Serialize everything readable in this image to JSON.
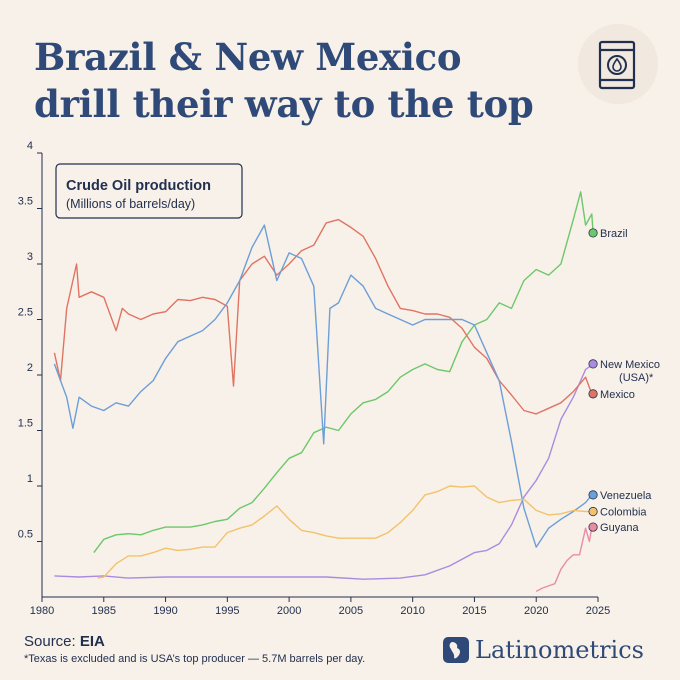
{
  "title": "Brazil & New Mexico drill their way to the top",
  "legend_box": {
    "title": "Crude Oil production",
    "subtitle": "(Millions of barrels/day)"
  },
  "source": {
    "label": "Source:",
    "name": "EIA"
  },
  "footnote": "*Texas is excluded and is USA’s top producer —  5.7M barrels per day.",
  "brand": {
    "name": "Latinometrics"
  },
  "colors": {
    "background": "#f8f1e9",
    "axis_text": "#22304f",
    "title": "#2f4a78"
  },
  "chart_data": {
    "type": "line",
    "title": "Crude Oil production",
    "subtitle": "(Millions of barrels/day)",
    "xlabel": "",
    "ylabel": "",
    "xlim": [
      1980,
      2025
    ],
    "ylim": [
      0,
      4
    ],
    "x_ticks": [
      1980,
      1985,
      1990,
      1995,
      2000,
      2005,
      2010,
      2015,
      2020,
      2025
    ],
    "y_ticks": [
      0.5,
      1,
      1.5,
      2,
      2.5,
      3,
      3.5,
      4
    ],
    "grid": false,
    "series": [
      {
        "name": "Brazil",
        "color": "#6cc86a",
        "icon": "brazil-flag-icon",
        "points": [
          [
            1984.2,
            0.4
          ],
          [
            1985,
            0.52
          ],
          [
            1986,
            0.56
          ],
          [
            1987,
            0.57
          ],
          [
            1988,
            0.56
          ],
          [
            1989,
            0.6
          ],
          [
            1990,
            0.63
          ],
          [
            1991,
            0.63
          ],
          [
            1992,
            0.63
          ],
          [
            1993,
            0.65
          ],
          [
            1994,
            0.68
          ],
          [
            1995,
            0.7
          ],
          [
            1996,
            0.8
          ],
          [
            1997,
            0.85
          ],
          [
            1998,
            0.98
          ],
          [
            1999,
            1.12
          ],
          [
            2000,
            1.25
          ],
          [
            2001,
            1.3
          ],
          [
            2002,
            1.48
          ],
          [
            2003,
            1.53
          ],
          [
            2004,
            1.5
          ],
          [
            2005,
            1.65
          ],
          [
            2006,
            1.75
          ],
          [
            2007,
            1.78
          ],
          [
            2008,
            1.85
          ],
          [
            2009,
            1.98
          ],
          [
            2010,
            2.05
          ],
          [
            2011,
            2.1
          ],
          [
            2012,
            2.05
          ],
          [
            2013,
            2.03
          ],
          [
            2014,
            2.3
          ],
          [
            2015,
            2.45
          ],
          [
            2016,
            2.5
          ],
          [
            2017,
            2.65
          ],
          [
            2018,
            2.6
          ],
          [
            2019,
            2.85
          ],
          [
            2020,
            2.95
          ],
          [
            2021,
            2.9
          ],
          [
            2022,
            3.0
          ],
          [
            2023,
            3.4
          ],
          [
            2023.6,
            3.65
          ],
          [
            2024,
            3.35
          ],
          [
            2024.5,
            3.45
          ],
          [
            2024.6,
            3.28
          ]
        ]
      },
      {
        "name": "New Mexico (USA)*",
        "color": "#a98be0",
        "icon": "usa-flag-icon",
        "points": [
          [
            1981,
            0.19
          ],
          [
            1983,
            0.18
          ],
          [
            1985,
            0.19
          ],
          [
            1987,
            0.17
          ],
          [
            1990,
            0.18
          ],
          [
            1993,
            0.18
          ],
          [
            1996,
            0.18
          ],
          [
            2000,
            0.18
          ],
          [
            2003,
            0.18
          ],
          [
            2006,
            0.16
          ],
          [
            2009,
            0.17
          ],
          [
            2011,
            0.2
          ],
          [
            2013,
            0.28
          ],
          [
            2015,
            0.4
          ],
          [
            2016,
            0.42
          ],
          [
            2017,
            0.48
          ],
          [
            2018,
            0.65
          ],
          [
            2019,
            0.9
          ],
          [
            2020,
            1.05
          ],
          [
            2021,
            1.25
          ],
          [
            2022,
            1.6
          ],
          [
            2023,
            1.8
          ],
          [
            2024,
            2.05
          ],
          [
            2024.6,
            2.1
          ]
        ]
      },
      {
        "name": "Mexico",
        "color": "#e07462",
        "icon": "mexico-flag-icon",
        "points": [
          [
            1981,
            2.2
          ],
          [
            1981.5,
            1.95
          ],
          [
            1982,
            2.6
          ],
          [
            1982.8,
            3.0
          ],
          [
            1983,
            2.7
          ],
          [
            1984,
            2.75
          ],
          [
            1985,
            2.7
          ],
          [
            1986,
            2.4
          ],
          [
            1986.5,
            2.6
          ],
          [
            1987,
            2.55
          ],
          [
            1988,
            2.5
          ],
          [
            1989,
            2.55
          ],
          [
            1990,
            2.57
          ],
          [
            1991,
            2.68
          ],
          [
            1992,
            2.67
          ],
          [
            1993,
            2.7
          ],
          [
            1994,
            2.68
          ],
          [
            1995,
            2.62
          ],
          [
            1995.5,
            1.9
          ],
          [
            1996,
            2.85
          ],
          [
            1997,
            3.0
          ],
          [
            1998,
            3.07
          ],
          [
            1999,
            2.9
          ],
          [
            2000,
            3.0
          ],
          [
            2001,
            3.12
          ],
          [
            2002,
            3.17
          ],
          [
            2003,
            3.37
          ],
          [
            2004,
            3.4
          ],
          [
            2005,
            3.33
          ],
          [
            2006,
            3.25
          ],
          [
            2007,
            3.05
          ],
          [
            2008,
            2.8
          ],
          [
            2009,
            2.6
          ],
          [
            2010,
            2.58
          ],
          [
            2011,
            2.55
          ],
          [
            2012,
            2.55
          ],
          [
            2013,
            2.52
          ],
          [
            2014,
            2.42
          ],
          [
            2015,
            2.25
          ],
          [
            2016,
            2.15
          ],
          [
            2017,
            1.95
          ],
          [
            2018,
            1.82
          ],
          [
            2019,
            1.68
          ],
          [
            2020,
            1.65
          ],
          [
            2021,
            1.7
          ],
          [
            2022,
            1.75
          ],
          [
            2023,
            1.85
          ],
          [
            2024,
            1.98
          ],
          [
            2024.5,
            1.83
          ]
        ]
      },
      {
        "name": "Venezuela",
        "color": "#6c9ed8",
        "icon": "venezuela-flag-icon",
        "points": [
          [
            1981,
            2.1
          ],
          [
            1981.5,
            1.95
          ],
          [
            1982,
            1.8
          ],
          [
            1982.5,
            1.52
          ],
          [
            1983,
            1.8
          ],
          [
            1984,
            1.72
          ],
          [
            1985,
            1.68
          ],
          [
            1986,
            1.75
          ],
          [
            1987,
            1.72
          ],
          [
            1988,
            1.85
          ],
          [
            1989,
            1.95
          ],
          [
            1990,
            2.15
          ],
          [
            1991,
            2.3
          ],
          [
            1992,
            2.35
          ],
          [
            1993,
            2.4
          ],
          [
            1994,
            2.5
          ],
          [
            1995,
            2.65
          ],
          [
            1996,
            2.85
          ],
          [
            1997,
            3.15
          ],
          [
            1998,
            3.35
          ],
          [
            1999,
            2.85
          ],
          [
            2000,
            3.1
          ],
          [
            2001,
            3.05
          ],
          [
            2002,
            2.8
          ],
          [
            2002.8,
            1.38
          ],
          [
            2003.3,
            2.6
          ],
          [
            2004,
            2.65
          ],
          [
            2005,
            2.9
          ],
          [
            2006,
            2.8
          ],
          [
            2007,
            2.6
          ],
          [
            2008,
            2.55
          ],
          [
            2009,
            2.5
          ],
          [
            2010,
            2.45
          ],
          [
            2011,
            2.5
          ],
          [
            2012,
            2.5
          ],
          [
            2013,
            2.5
          ],
          [
            2014,
            2.5
          ],
          [
            2015,
            2.45
          ],
          [
            2016,
            2.2
          ],
          [
            2017,
            1.95
          ],
          [
            2018,
            1.4
          ],
          [
            2019,
            0.8
          ],
          [
            2020,
            0.45
          ],
          [
            2021,
            0.62
          ],
          [
            2022,
            0.7
          ],
          [
            2023,
            0.77
          ],
          [
            2024,
            0.85
          ],
          [
            2024.5,
            0.92
          ]
        ]
      },
      {
        "name": "Colombia",
        "color": "#f2c26b",
        "icon": "colombia-flag-icon",
        "points": [
          [
            1984.5,
            0.17
          ],
          [
            1985,
            0.18
          ],
          [
            1986,
            0.3
          ],
          [
            1987,
            0.37
          ],
          [
            1988,
            0.37
          ],
          [
            1989,
            0.4
          ],
          [
            1990,
            0.44
          ],
          [
            1991,
            0.42
          ],
          [
            1992,
            0.43
          ],
          [
            1993,
            0.45
          ],
          [
            1994,
            0.45
          ],
          [
            1995,
            0.58
          ],
          [
            1996,
            0.62
          ],
          [
            1997,
            0.65
          ],
          [
            1998,
            0.73
          ],
          [
            1999,
            0.82
          ],
          [
            2000,
            0.7
          ],
          [
            2001,
            0.6
          ],
          [
            2002,
            0.58
          ],
          [
            2003,
            0.55
          ],
          [
            2004,
            0.53
          ],
          [
            2005,
            0.53
          ],
          [
            2006,
            0.53
          ],
          [
            2007,
            0.53
          ],
          [
            2008,
            0.58
          ],
          [
            2009,
            0.67
          ],
          [
            2010,
            0.78
          ],
          [
            2011,
            0.92
          ],
          [
            2012,
            0.95
          ],
          [
            2013,
            1.0
          ],
          [
            2014,
            0.99
          ],
          [
            2015,
            1.0
          ],
          [
            2016,
            0.9
          ],
          [
            2017,
            0.85
          ],
          [
            2018,
            0.87
          ],
          [
            2019,
            0.88
          ],
          [
            2020,
            0.78
          ],
          [
            2021,
            0.74
          ],
          [
            2022,
            0.75
          ],
          [
            2023,
            0.78
          ],
          [
            2024,
            0.77
          ],
          [
            2024.5,
            0.77
          ]
        ]
      },
      {
        "name": "Guyana",
        "color": "#e98da3",
        "icon": "guyana-flag-icon",
        "points": [
          [
            2020,
            0.05
          ],
          [
            2020.5,
            0.08
          ],
          [
            2021,
            0.1
          ],
          [
            2021.5,
            0.12
          ],
          [
            2022,
            0.25
          ],
          [
            2022.5,
            0.33
          ],
          [
            2023,
            0.38
          ],
          [
            2023.5,
            0.38
          ],
          [
            2024,
            0.62
          ],
          [
            2024.3,
            0.5
          ],
          [
            2024.5,
            0.63
          ]
        ]
      }
    ],
    "labels": [
      "Brazil",
      "New Mexico",
      "(USA)*",
      "Mexico",
      "Venezuela",
      "Colombia",
      "Guyana"
    ]
  }
}
